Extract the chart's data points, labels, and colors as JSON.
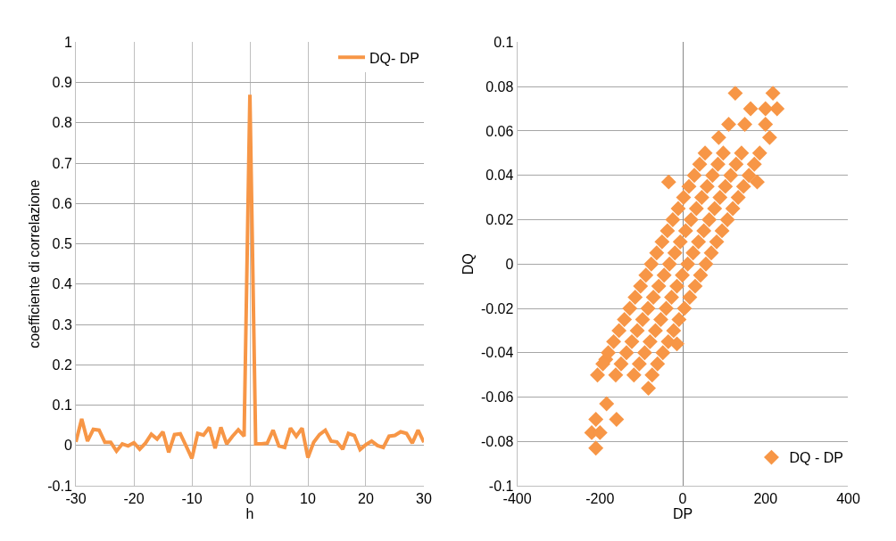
{
  "chart_data": [
    {
      "type": "line",
      "xlabel": "h",
      "ylabel": "coefficiente di correlazione",
      "x": [
        -30,
        -29,
        -28,
        -27,
        -26,
        -25,
        -24,
        -23,
        -22,
        -21,
        -20,
        -19,
        -18,
        -17,
        -16,
        -15,
        -14,
        -13,
        -12,
        -11,
        -10,
        -9,
        -8,
        -7,
        -6,
        -5,
        -4,
        -3,
        -2,
        -1,
        0,
        1,
        2,
        3,
        4,
        5,
        6,
        7,
        8,
        9,
        10,
        11,
        12,
        13,
        14,
        15,
        16,
        17,
        18,
        19,
        20,
        21,
        22,
        23,
        24,
        25,
        26,
        27,
        28,
        29,
        30
      ],
      "series": [
        {
          "name": "DQ- DP",
          "color": "#f79646",
          "values": [
            0.009,
            0.066,
            0.011,
            0.04,
            0.038,
            0.008,
            0.008,
            -0.014,
            0.004,
            -0.001,
            0.007,
            -0.009,
            0.006,
            0.028,
            0.016,
            0.034,
            -0.017,
            0.027,
            0.029,
            -0.001,
            -0.032,
            0.03,
            0.026,
            0.045,
            -0.007,
            0.045,
            0.004,
            0.023,
            0.039,
            0.023,
            0.87,
            0.004,
            0.004,
            0.006,
            0.038,
            -0.001,
            -0.005,
            0.043,
            0.023,
            0.043,
            -0.03,
            0.008,
            0.027,
            0.038,
            0.011,
            0.009,
            -0.009,
            0.03,
            0.025,
            -0.01,
            0.002,
            0.011,
            0,
            -0.005,
            0.023,
            0.025,
            0.034,
            0.03,
            0.006,
            0.038,
            0.008
          ]
        }
      ],
      "xlim": [
        -30,
        30
      ],
      "xticks": [
        -30,
        -20,
        -10,
        0,
        10,
        20,
        30
      ],
      "ylim": [
        -0.1,
        1
      ],
      "yticks": [
        -0.1,
        0,
        0.1,
        0.2,
        0.3,
        0.4,
        0.5,
        0.6,
        0.7,
        0.8,
        0.9,
        1
      ],
      "grid": true,
      "legend": "top right"
    },
    {
      "type": "scatter",
      "xlabel": "DP",
      "ylabel": "DQ",
      "marker": "diamond",
      "series": [
        {
          "name": "DQ - DP",
          "color": "#f79646",
          "x": [
            127,
            218,
            228,
            200,
            164,
            200,
            210,
            111,
            150,
            87,
            -34,
            180,
            -210,
            -220,
            -200,
            -210,
            -160,
            -184,
            -186,
            -83,
            -14,
            -206,
            -162,
            -118,
            -74,
            -193,
            -149,
            -105,
            -61,
            -180,
            -136,
            -92,
            -48,
            -167,
            -123,
            -79,
            -35,
            -154,
            -110,
            -66,
            -22,
            -141,
            -97,
            -53,
            -9,
            -128,
            -84,
            -40,
            4,
            -115,
            -71,
            -27,
            17,
            -102,
            -58,
            -14,
            30,
            -89,
            -45,
            -1,
            43,
            -76,
            -32,
            12,
            56,
            -63,
            -19,
            25,
            69,
            -50,
            -6,
            38,
            82,
            -37,
            7,
            51,
            95,
            -24,
            20,
            64,
            108,
            -11,
            33,
            77,
            121,
            2,
            46,
            90,
            134,
            15,
            59,
            103,
            147,
            28,
            72,
            116,
            160,
            41,
            85,
            129,
            173,
            54,
            98,
            142,
            186
          ],
          "values": [
            0.077,
            0.077,
            0.07,
            0.07,
            0.07,
            0.063,
            0.057,
            0.063,
            0.063,
            0.057,
            0.037,
            0.037,
            -0.083,
            -0.076,
            -0.076,
            -0.07,
            -0.07,
            -0.063,
            -0.043,
            -0.056,
            -0.036,
            -0.05,
            -0.05,
            -0.05,
            -0.05,
            -0.045,
            -0.045,
            -0.045,
            -0.045,
            -0.04,
            -0.04,
            -0.04,
            -0.04,
            -0.035,
            -0.035,
            -0.035,
            -0.035,
            -0.03,
            -0.03,
            -0.03,
            -0.03,
            -0.025,
            -0.025,
            -0.025,
            -0.025,
            -0.02,
            -0.02,
            -0.02,
            -0.02,
            -0.015,
            -0.015,
            -0.015,
            -0.015,
            -0.01,
            -0.01,
            -0.01,
            -0.01,
            -0.005,
            -0.005,
            -0.005,
            -0.005,
            0,
            0,
            0,
            0,
            0.005,
            0.005,
            0.005,
            0.005,
            0.01,
            0.01,
            0.01,
            0.01,
            0.015,
            0.015,
            0.015,
            0.015,
            0.02,
            0.02,
            0.02,
            0.02,
            0.025,
            0.025,
            0.025,
            0.025,
            0.03,
            0.03,
            0.03,
            0.03,
            0.035,
            0.035,
            0.035,
            0.035,
            0.04,
            0.04,
            0.04,
            0.04,
            0.045,
            0.045,
            0.045,
            0.045,
            0.05,
            0.05,
            0.05,
            0.05
          ]
        }
      ],
      "xlim": [
        -400,
        400
      ],
      "xticks": [
        -400,
        -200,
        0,
        200,
        400
      ],
      "ylim": [
        -0.1,
        0.1
      ],
      "yticks": [
        -0.1,
        -0.08,
        -0.06,
        -0.04,
        -0.02,
        0,
        0.02,
        0.04,
        0.06,
        0.08,
        0.1
      ],
      "grid": "y",
      "legend": "bottom right"
    }
  ]
}
